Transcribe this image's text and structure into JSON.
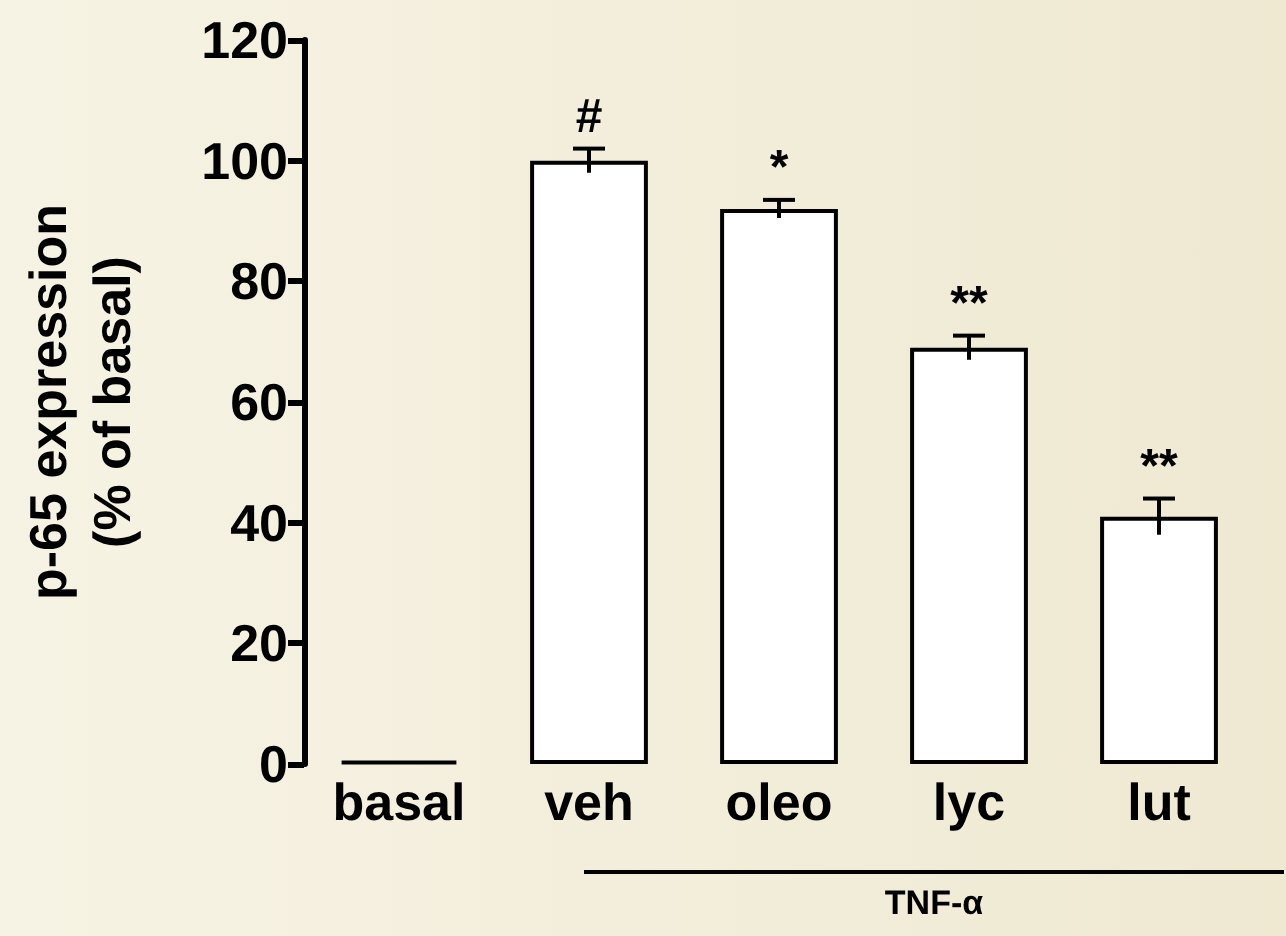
{
  "chart_data": {
    "type": "bar",
    "ylabel": "p-65 expression\n(% of basal)",
    "categories": [
      "basal",
      "veh",
      "oleo",
      "lyc",
      "lut"
    ],
    "values": [
      0.5,
      100,
      92,
      69,
      41
    ],
    "errors": [
      null,
      2,
      1.5,
      2,
      3
    ],
    "colors": [
      "#000000",
      "#ffffff",
      "#ffffff",
      "#ffffff",
      "#ffffff"
    ],
    "ylim": [
      0,
      120
    ],
    "yticks": [
      0,
      20,
      40,
      60,
      80,
      100,
      120
    ],
    "grid": false,
    "annotations": [
      {
        "text": "#",
        "x": "veh",
        "y": 100
      },
      {
        "text": "*",
        "x": "oleo",
        "y": 92
      },
      {
        "text": "**",
        "x": "lyc",
        "y": 69
      },
      {
        "text": "**",
        "x": "lut",
        "y": 41
      },
      "TNF-α"
    ]
  }
}
